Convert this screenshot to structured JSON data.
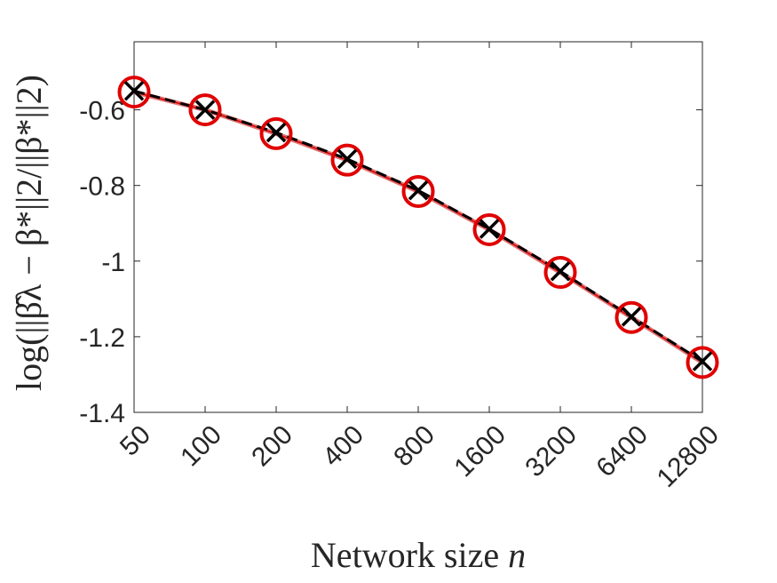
{
  "chart_data": {
    "type": "line",
    "title": "",
    "xlabel_text": "Network size ",
    "xlabel_var": "n",
    "ylabel": "log(||β̂λ − β*||2/||β*||2)",
    "x_tick_labels": [
      "50",
      "100",
      "200",
      "400",
      "800",
      "1600",
      "3200",
      "6400",
      "12800"
    ],
    "y_tick_labels": [
      "-0.6",
      "-0.8",
      "-1",
      "-1.2",
      "-1.4"
    ],
    "y_ticks": [
      -0.6,
      -0.8,
      -1.0,
      -1.2,
      -1.4
    ],
    "ylim": [
      -1.4,
      -0.42
    ],
    "grid": false,
    "legend": "none",
    "series": [
      {
        "marker": "circle",
        "color": "#e00000",
        "values": [
          -0.553,
          -0.6,
          -0.663,
          -0.733,
          -0.816,
          -0.917,
          -1.03,
          -1.149,
          -1.268
        ]
      },
      {
        "marker": "x",
        "color": "#000000",
        "linestyle": "dashed",
        "values": [
          -0.55,
          -0.6,
          -0.66,
          -0.73,
          -0.813,
          -0.915,
          -1.027,
          -1.147,
          -1.265
        ]
      }
    ]
  }
}
